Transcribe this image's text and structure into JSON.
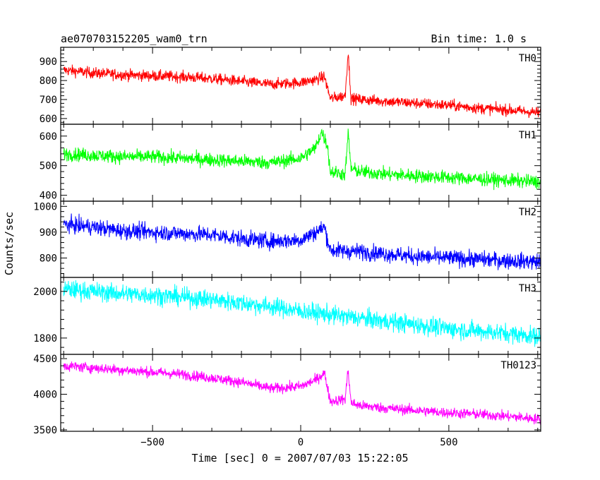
{
  "chart_data": {
    "type": "line",
    "title": "ae070703152205_wam0_trn",
    "subtitle": "Bin time: 1.0 s",
    "xlabel": "Time [sec] 0 = 2007/07/03 15:22:05",
    "ylabel": "Counts/sec",
    "xlim": [
      -810,
      810
    ],
    "x_ticks": [
      "−500",
      "0",
      "500"
    ],
    "x_tick_values": [
      -500,
      0,
      500
    ],
    "grid": false,
    "panels": [
      {
        "name": "TH0",
        "color": "#ff0000",
        "ylim": [
          570,
          975
        ],
        "y_ticks": [
          "600",
          "700",
          "800",
          "900"
        ],
        "y_tick_values": [
          600,
          700,
          800,
          900
        ],
        "x": [
          -800,
          -700,
          -600,
          -500,
          -400,
          -300,
          -200,
          -100,
          0,
          50,
          80,
          100,
          150,
          160,
          170,
          200,
          300,
          400,
          500,
          600,
          700,
          810
        ],
        "values": [
          855,
          840,
          830,
          825,
          820,
          810,
          795,
          780,
          790,
          805,
          820,
          705,
          720,
          950,
          705,
          700,
          690,
          680,
          670,
          655,
          645,
          630
        ],
        "noise": 28
      },
      {
        "name": "TH1",
        "color": "#00ff00",
        "ylim": [
          380,
          640
        ],
        "y_ticks": [
          "400",
          "500",
          "600"
        ],
        "y_tick_values": [
          400,
          500,
          600
        ],
        "x": [
          -800,
          -700,
          -600,
          -500,
          -400,
          -300,
          -200,
          -100,
          0,
          50,
          70,
          90,
          100,
          150,
          160,
          170,
          200,
          300,
          400,
          500,
          600,
          700,
          810
        ],
        "values": [
          540,
          535,
          530,
          530,
          525,
          520,
          515,
          510,
          525,
          560,
          615,
          570,
          480,
          470,
          610,
          490,
          480,
          470,
          465,
          460,
          455,
          450,
          445
        ],
        "noise": 22
      },
      {
        "name": "TH2",
        "color": "#0000ff",
        "ylim": [
          725,
          1020
        ],
        "y_ticks": [
          "800",
          "900",
          "1000"
        ],
        "y_tick_values": [
          800,
          900,
          1000
        ],
        "x": [
          -800,
          -700,
          -600,
          -500,
          -400,
          -300,
          -200,
          -100,
          0,
          50,
          80,
          100,
          200,
          300,
          400,
          500,
          600,
          700,
          810
        ],
        "values": [
          930,
          920,
          905,
          900,
          895,
          890,
          875,
          865,
          870,
          900,
          920,
          830,
          825,
          815,
          805,
          800,
          795,
          790,
          785
        ],
        "noise": 30
      },
      {
        "name": "TH3",
        "color": "#00ffff",
        "ylim": [
          1730,
          2060
        ],
        "y_ticks": [
          "1800",
          "2000"
        ],
        "y_tick_values": [
          1800,
          2000
        ],
        "x": [
          -800,
          -700,
          -600,
          -500,
          -400,
          -300,
          -200,
          -100,
          0,
          100,
          200,
          300,
          400,
          500,
          600,
          700,
          810
        ],
        "values": [
          2010,
          2000,
          1990,
          1985,
          1975,
          1965,
          1950,
          1935,
          1915,
          1900,
          1885,
          1870,
          1855,
          1840,
          1830,
          1820,
          1805
        ],
        "noise": 38
      },
      {
        "name": "TH0123",
        "color": "#ff00ff",
        "ylim": [
          3480,
          4560
        ],
        "y_ticks": [
          "3500",
          "4000",
          "4500"
        ],
        "y_tick_values": [
          3500,
          4000,
          4500
        ],
        "x": [
          -800,
          -700,
          -600,
          -500,
          -400,
          -300,
          -200,
          -100,
          0,
          50,
          80,
          100,
          150,
          160,
          170,
          200,
          300,
          400,
          500,
          600,
          700,
          810
        ],
        "values": [
          4400,
          4370,
          4340,
          4310,
          4280,
          4230,
          4170,
          4080,
          4110,
          4200,
          4300,
          3900,
          3930,
          4350,
          3880,
          3840,
          3800,
          3770,
          3740,
          3720,
          3690,
          3650
        ],
        "noise": 70
      }
    ]
  }
}
